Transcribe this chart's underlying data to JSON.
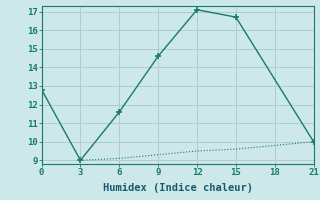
{
  "xlabel": "Humidex (Indice chaleur)",
  "line1_x": [
    0,
    3,
    6,
    9,
    12,
    15,
    21
  ],
  "line1_y": [
    12.8,
    9.0,
    11.6,
    14.6,
    17.1,
    16.7,
    10.0
  ],
  "line2_x": [
    3,
    6,
    9,
    12,
    15,
    18,
    21
  ],
  "line2_y": [
    9.0,
    9.1,
    9.3,
    9.5,
    9.6,
    9.8,
    10.0
  ],
  "line_color": "#1a7a6e",
  "bg_color": "#cce8e8",
  "grid_color": "#b0cccc",
  "xlim": [
    0,
    21
  ],
  "ylim": [
    8.8,
    17.3
  ],
  "xticks": [
    0,
    3,
    6,
    9,
    12,
    15,
    18,
    21
  ],
  "yticks": [
    9,
    10,
    11,
    12,
    13,
    14,
    15,
    16,
    17
  ],
  "tick_color": "#1a7a6e",
  "label_color": "#1a5a6e",
  "tick_fontsize": 6.5,
  "xlabel_fontsize": 7.5
}
